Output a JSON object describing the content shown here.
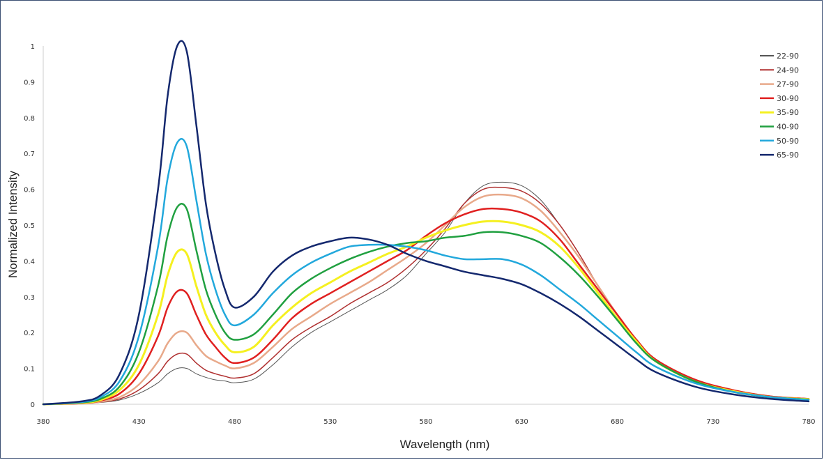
{
  "chart_data": {
    "type": "line",
    "title": "",
    "xlabel": "Wavelength (nm)",
    "ylabel": "Normalized Intensity",
    "xlim": [
      380,
      780
    ],
    "ylim": [
      0,
      1
    ],
    "x_ticks": [
      380,
      430,
      480,
      530,
      580,
      630,
      680,
      730,
      780
    ],
    "y_ticks": [
      0,
      0.1,
      0.2,
      0.3,
      0.4,
      0.5,
      0.6,
      0.7,
      0.8,
      0.9,
      1
    ],
    "grid": false,
    "legend_position": "top-right",
    "x": [
      380,
      400,
      410,
      420,
      430,
      440,
      445,
      450,
      455,
      460,
      465,
      470,
      475,
      480,
      490,
      500,
      510,
      520,
      530,
      540,
      550,
      560,
      570,
      580,
      590,
      600,
      610,
      620,
      630,
      640,
      650,
      660,
      670,
      680,
      690,
      700,
      720,
      740,
      760,
      780
    ],
    "series": [
      {
        "name": "22-90",
        "color": "#555555",
        "width": 1,
        "values": [
          0,
          0.002,
          0.005,
          0.012,
          0.03,
          0.06,
          0.085,
          0.1,
          0.1,
          0.085,
          0.075,
          0.068,
          0.065,
          0.06,
          0.07,
          0.11,
          0.16,
          0.2,
          0.23,
          0.26,
          0.29,
          0.32,
          0.36,
          0.42,
          0.48,
          0.56,
          0.61,
          0.62,
          0.61,
          0.57,
          0.5,
          0.42,
          0.33,
          0.25,
          0.18,
          0.12,
          0.07,
          0.04,
          0.02,
          0.015
        ]
      },
      {
        "name": "24-90",
        "color": "#b03030",
        "width": 1.5,
        "values": [
          0,
          0.002,
          0.006,
          0.015,
          0.04,
          0.085,
          0.12,
          0.14,
          0.14,
          0.115,
          0.095,
          0.085,
          0.078,
          0.073,
          0.085,
          0.13,
          0.18,
          0.215,
          0.245,
          0.28,
          0.31,
          0.34,
          0.38,
          0.43,
          0.49,
          0.56,
          0.6,
          0.605,
          0.595,
          0.56,
          0.5,
          0.42,
          0.33,
          0.25,
          0.18,
          0.125,
          0.07,
          0.04,
          0.022,
          0.015
        ]
      },
      {
        "name": "27-90",
        "color": "#e8a98a",
        "width": 2.5,
        "values": [
          0,
          0.002,
          0.007,
          0.02,
          0.055,
          0.12,
          0.17,
          0.2,
          0.2,
          0.165,
          0.135,
          0.12,
          0.108,
          0.1,
          0.115,
          0.16,
          0.21,
          0.245,
          0.28,
          0.31,
          0.34,
          0.375,
          0.41,
          0.45,
          0.5,
          0.55,
          0.58,
          0.585,
          0.575,
          0.54,
          0.48,
          0.41,
          0.33,
          0.25,
          0.18,
          0.125,
          0.07,
          0.04,
          0.022,
          0.015
        ]
      },
      {
        "name": "30-90",
        "color": "#e02020",
        "width": 2.5,
        "values": [
          0,
          0.003,
          0.01,
          0.03,
          0.085,
          0.19,
          0.27,
          0.315,
          0.31,
          0.25,
          0.195,
          0.16,
          0.13,
          0.115,
          0.13,
          0.18,
          0.24,
          0.28,
          0.31,
          0.34,
          0.37,
          0.4,
          0.43,
          0.47,
          0.505,
          0.53,
          0.545,
          0.545,
          0.535,
          0.51,
          0.46,
          0.39,
          0.32,
          0.25,
          0.18,
          0.125,
          0.07,
          0.04,
          0.022,
          0.015
        ]
      },
      {
        "name": "35-90",
        "color": "#f5f020",
        "width": 3,
        "values": [
          0,
          0.004,
          0.012,
          0.04,
          0.11,
          0.25,
          0.36,
          0.425,
          0.42,
          0.33,
          0.25,
          0.2,
          0.165,
          0.145,
          0.16,
          0.22,
          0.27,
          0.31,
          0.34,
          0.37,
          0.395,
          0.42,
          0.44,
          0.465,
          0.485,
          0.5,
          0.51,
          0.51,
          0.5,
          0.48,
          0.44,
          0.38,
          0.31,
          0.24,
          0.175,
          0.12,
          0.065,
          0.037,
          0.02,
          0.014
        ]
      },
      {
        "name": "40-90",
        "color": "#20a040",
        "width": 2.5,
        "values": [
          0,
          0.005,
          0.015,
          0.05,
          0.145,
          0.33,
          0.47,
          0.55,
          0.545,
          0.43,
          0.32,
          0.25,
          0.2,
          0.18,
          0.195,
          0.25,
          0.31,
          0.35,
          0.38,
          0.405,
          0.425,
          0.44,
          0.45,
          0.455,
          0.465,
          0.47,
          0.48,
          0.48,
          0.47,
          0.45,
          0.41,
          0.36,
          0.3,
          0.235,
          0.17,
          0.12,
          0.065,
          0.035,
          0.02,
          0.013
        ]
      },
      {
        "name": "50-90",
        "color": "#22a8dc",
        "width": 2.5,
        "values": [
          0,
          0.006,
          0.02,
          0.065,
          0.19,
          0.44,
          0.63,
          0.73,
          0.72,
          0.57,
          0.42,
          0.32,
          0.25,
          0.22,
          0.25,
          0.31,
          0.36,
          0.395,
          0.42,
          0.44,
          0.445,
          0.445,
          0.44,
          0.43,
          0.415,
          0.405,
          0.405,
          0.405,
          0.39,
          0.36,
          0.32,
          0.28,
          0.235,
          0.19,
          0.145,
          0.105,
          0.06,
          0.035,
          0.02,
          0.012
        ]
      },
      {
        "name": "65-90",
        "color": "#14286e",
        "width": 2.5,
        "values": [
          0,
          0.008,
          0.025,
          0.085,
          0.25,
          0.6,
          0.86,
          1.0,
          0.985,
          0.78,
          0.56,
          0.42,
          0.32,
          0.27,
          0.3,
          0.37,
          0.415,
          0.44,
          0.455,
          0.465,
          0.46,
          0.445,
          0.42,
          0.4,
          0.385,
          0.37,
          0.36,
          0.35,
          0.335,
          0.31,
          0.28,
          0.245,
          0.205,
          0.165,
          0.125,
          0.09,
          0.05,
          0.028,
          0.015,
          0.008
        ]
      }
    ]
  }
}
